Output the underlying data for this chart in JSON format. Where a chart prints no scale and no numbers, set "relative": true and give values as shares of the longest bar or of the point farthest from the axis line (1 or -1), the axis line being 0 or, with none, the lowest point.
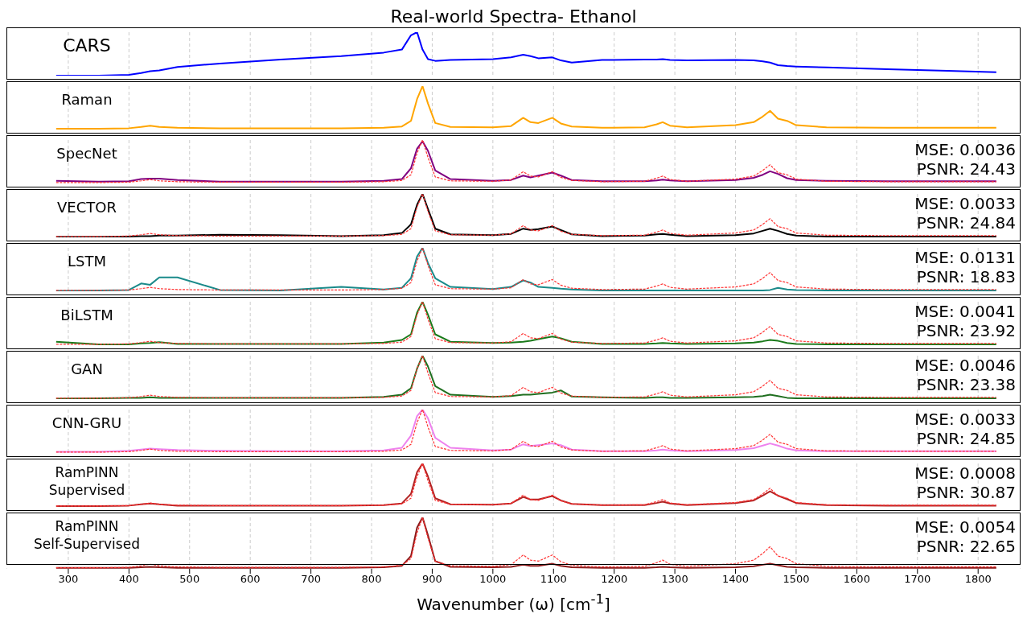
{
  "chart_data": [
    {
      "type": "line",
      "title": "Real-world Spectra- Ethanol",
      "relative": true,
      "xlim": [
        198,
        1870
      ],
      "xticks": [
        300,
        400,
        500,
        600,
        700,
        800,
        900,
        1000,
        1100,
        1200,
        1300,
        1400,
        1500,
        1600,
        1700,
        1800
      ],
      "grid": "x",
      "tick_labels": false,
      "marker": "none",
      "annotations": [
        "CARS"
      ],
      "x": [
        280,
        350,
        400,
        420,
        435,
        450,
        480,
        550,
        650,
        750,
        820,
        850,
        865,
        875,
        884,
        893,
        905,
        930,
        1000,
        1030,
        1050,
        1062,
        1075,
        1098,
        1112,
        1130,
        1180,
        1250,
        1270,
        1280,
        1292,
        1320,
        1400,
        1430,
        1445,
        1457,
        1470,
        1485,
        1500,
        1550,
        1650,
        1750,
        1830
      ],
      "series": [
        {
          "color": "#0000ff",
          "values": [
            0,
            0,
            0.02,
            0.06,
            0.1,
            0.12,
            0.2,
            0.28,
            0.37,
            0.45,
            0.53,
            0.6,
            0.93,
            1.0,
            0.6,
            0.38,
            0.34,
            0.36,
            0.38,
            0.42,
            0.48,
            0.45,
            0.4,
            0.42,
            0.35,
            0.3,
            0.36,
            0.37,
            0.37,
            0.38,
            0.36,
            0.35,
            0.36,
            0.35,
            0.33,
            0.3,
            0.24,
            0.22,
            0.21,
            0.19,
            0.15,
            0.11,
            0.08
          ]
        }
      ]
    },
    {
      "type": "line",
      "relative": true,
      "xlim": [
        198,
        1870
      ],
      "xticks": [
        300,
        400,
        500,
        600,
        700,
        800,
        900,
        1000,
        1100,
        1200,
        1300,
        1400,
        1500,
        1600,
        1700,
        1800
      ],
      "grid": "x",
      "tick_labels": false,
      "marker": "none",
      "annotations": [
        "Raman"
      ],
      "x": [
        280,
        350,
        400,
        420,
        435,
        450,
        480,
        550,
        650,
        750,
        820,
        850,
        865,
        875,
        884,
        893,
        905,
        930,
        1000,
        1030,
        1050,
        1062,
        1075,
        1098,
        1112,
        1130,
        1180,
        1250,
        1270,
        1280,
        1292,
        1320,
        1400,
        1430,
        1445,
        1457,
        1470,
        1485,
        1500,
        1550,
        1650,
        1750,
        1830
      ],
      "series": [
        {
          "color": "#ffa500",
          "values": [
            0.02,
            0.02,
            0.03,
            0.06,
            0.09,
            0.06,
            0.04,
            0.03,
            0.03,
            0.03,
            0.04,
            0.07,
            0.2,
            0.7,
            1.0,
            0.6,
            0.15,
            0.06,
            0.05,
            0.08,
            0.27,
            0.17,
            0.15,
            0.27,
            0.14,
            0.07,
            0.04,
            0.05,
            0.12,
            0.17,
            0.09,
            0.05,
            0.1,
            0.17,
            0.3,
            0.43,
            0.25,
            0.2,
            0.1,
            0.05,
            0.04,
            0.04,
            0.04
          ]
        }
      ]
    },
    {
      "type": "line",
      "relative": true,
      "xlim": [
        198,
        1870
      ],
      "xticks": [
        300,
        400,
        500,
        600,
        700,
        800,
        900,
        1000,
        1100,
        1200,
        1300,
        1400,
        1500,
        1600,
        1700,
        1800
      ],
      "grid": "x",
      "tick_labels": false,
      "marker": "none",
      "annotations": [
        "SpecNet",
        "MSE: 0.0036",
        "PSNR: 24.43"
      ],
      "x": [
        280,
        350,
        400,
        420,
        435,
        450,
        480,
        550,
        650,
        750,
        820,
        850,
        865,
        875,
        884,
        893,
        905,
        930,
        1000,
        1030,
        1050,
        1062,
        1075,
        1098,
        1112,
        1130,
        1180,
        1250,
        1270,
        1280,
        1292,
        1320,
        1400,
        1430,
        1445,
        1457,
        1470,
        1485,
        1500,
        1550,
        1650,
        1750,
        1830
      ],
      "series": [
        {
          "color": "#ff3333",
          "line_style": "dashed",
          "values": [
            0.02,
            0.02,
            0.03,
            0.06,
            0.09,
            0.06,
            0.04,
            0.03,
            0.03,
            0.03,
            0.04,
            0.07,
            0.2,
            0.7,
            1.0,
            0.6,
            0.15,
            0.06,
            0.05,
            0.08,
            0.27,
            0.17,
            0.15,
            0.27,
            0.14,
            0.07,
            0.04,
            0.05,
            0.12,
            0.17,
            0.09,
            0.05,
            0.1,
            0.17,
            0.3,
            0.43,
            0.25,
            0.2,
            0.1,
            0.05,
            0.04,
            0.04,
            0.04
          ]
        },
        {
          "color": "#800080",
          "values": [
            0.06,
            0.04,
            0.05,
            0.1,
            0.11,
            0.11,
            0.08,
            0.04,
            0.04,
            0.04,
            0.06,
            0.1,
            0.35,
            0.8,
            0.97,
            0.75,
            0.3,
            0.1,
            0.06,
            0.08,
            0.18,
            0.14,
            0.18,
            0.25,
            0.18,
            0.08,
            0.05,
            0.05,
            0.07,
            0.09,
            0.07,
            0.05,
            0.08,
            0.13,
            0.2,
            0.28,
            0.22,
            0.12,
            0.08,
            0.06,
            0.05,
            0.05,
            0.05
          ]
        }
      ]
    },
    {
      "type": "line",
      "relative": true,
      "xlim": [
        198,
        1870
      ],
      "xticks": [
        300,
        400,
        500,
        600,
        700,
        800,
        900,
        1000,
        1100,
        1200,
        1300,
        1400,
        1500,
        1600,
        1700,
        1800
      ],
      "grid": "x",
      "tick_labels": false,
      "marker": "none",
      "annotations": [
        "VECTOR",
        "MSE: 0.0033",
        "PSNR: 24.84"
      ],
      "x": [
        280,
        350,
        400,
        420,
        435,
        450,
        480,
        550,
        650,
        750,
        820,
        850,
        865,
        875,
        884,
        893,
        905,
        930,
        1000,
        1030,
        1050,
        1062,
        1075,
        1098,
        1112,
        1130,
        1180,
        1250,
        1270,
        1280,
        1292,
        1320,
        1400,
        1430,
        1445,
        1457,
        1470,
        1485,
        1500,
        1550,
        1650,
        1750,
        1830
      ],
      "series": [
        {
          "color": "#ff3333",
          "line_style": "dashed",
          "values": [
            0.02,
            0.02,
            0.03,
            0.06,
            0.09,
            0.06,
            0.04,
            0.03,
            0.03,
            0.03,
            0.04,
            0.07,
            0.2,
            0.7,
            1.0,
            0.6,
            0.15,
            0.06,
            0.05,
            0.08,
            0.27,
            0.17,
            0.15,
            0.27,
            0.14,
            0.07,
            0.04,
            0.05,
            0.12,
            0.17,
            0.09,
            0.05,
            0.1,
            0.17,
            0.3,
            0.43,
            0.25,
            0.2,
            0.1,
            0.05,
            0.04,
            0.04,
            0.04
          ]
        },
        {
          "color": "#000000",
          "values": [
            0.01,
            0.01,
            0.02,
            0.03,
            0.03,
            0.04,
            0.04,
            0.06,
            0.05,
            0.03,
            0.05,
            0.1,
            0.3,
            0.75,
            1.0,
            0.65,
            0.2,
            0.07,
            0.05,
            0.08,
            0.2,
            0.17,
            0.19,
            0.25,
            0.17,
            0.07,
            0.03,
            0.04,
            0.07,
            0.08,
            0.06,
            0.03,
            0.05,
            0.09,
            0.15,
            0.2,
            0.15,
            0.08,
            0.04,
            0.02,
            0.02,
            0.02,
            0.02
          ]
        }
      ]
    },
    {
      "type": "line",
      "relative": true,
      "xlim": [
        198,
        1870
      ],
      "xticks": [
        300,
        400,
        500,
        600,
        700,
        800,
        900,
        1000,
        1100,
        1200,
        1300,
        1400,
        1500,
        1600,
        1700,
        1800
      ],
      "grid": "x",
      "tick_labels": false,
      "marker": "none",
      "annotations": [
        "LSTM",
        "MSE: 0.0131",
        "PSNR: 18.83"
      ],
      "x": [
        280,
        350,
        400,
        420,
        435,
        450,
        480,
        550,
        650,
        750,
        820,
        850,
        865,
        875,
        884,
        893,
        905,
        930,
        1000,
        1030,
        1050,
        1062,
        1075,
        1098,
        1112,
        1130,
        1180,
        1250,
        1270,
        1280,
        1292,
        1320,
        1400,
        1430,
        1445,
        1457,
        1470,
        1485,
        1500,
        1550,
        1650,
        1750,
        1830
      ],
      "series": [
        {
          "color": "#ff3333",
          "line_style": "dashed",
          "values": [
            0.02,
            0.02,
            0.03,
            0.06,
            0.09,
            0.06,
            0.04,
            0.03,
            0.03,
            0.03,
            0.04,
            0.07,
            0.2,
            0.7,
            1.0,
            0.6,
            0.15,
            0.06,
            0.05,
            0.08,
            0.27,
            0.17,
            0.15,
            0.27,
            0.14,
            0.07,
            0.04,
            0.05,
            0.12,
            0.17,
            0.09,
            0.05,
            0.1,
            0.17,
            0.3,
            0.43,
            0.25,
            0.2,
            0.1,
            0.05,
            0.04,
            0.04,
            0.04
          ]
        },
        {
          "color": "#1a8a8a",
          "values": [
            0.01,
            0.02,
            0.03,
            0.18,
            0.15,
            0.32,
            0.32,
            0.03,
            0.02,
            0.1,
            0.04,
            0.08,
            0.3,
            0.8,
            1.0,
            0.65,
            0.3,
            0.1,
            0.05,
            0.1,
            0.25,
            0.2,
            0.1,
            0.08,
            0.06,
            0.04,
            0.02,
            0.02,
            0.02,
            0.02,
            0.02,
            0.02,
            0.02,
            0.02,
            0.02,
            0.03,
            0.08,
            0.04,
            0.03,
            0.02,
            0.02,
            0.02,
            0.02
          ]
        }
      ]
    },
    {
      "type": "line",
      "relative": true,
      "xlim": [
        198,
        1870
      ],
      "xticks": [
        300,
        400,
        500,
        600,
        700,
        800,
        900,
        1000,
        1100,
        1200,
        1300,
        1400,
        1500,
        1600,
        1700,
        1800
      ],
      "grid": "x",
      "tick_labels": false,
      "marker": "none",
      "annotations": [
        "BiLSTM",
        "MSE: 0.0041",
        "PSNR: 23.92"
      ],
      "x": [
        280,
        350,
        400,
        420,
        435,
        450,
        480,
        550,
        650,
        750,
        820,
        850,
        865,
        875,
        884,
        893,
        905,
        930,
        1000,
        1030,
        1050,
        1062,
        1075,
        1098,
        1112,
        1130,
        1180,
        1250,
        1270,
        1280,
        1292,
        1320,
        1400,
        1430,
        1445,
        1457,
        1470,
        1485,
        1500,
        1550,
        1650,
        1750,
        1830
      ],
      "series": [
        {
          "color": "#ff3333",
          "line_style": "dashed",
          "values": [
            0.02,
            0.02,
            0.03,
            0.06,
            0.09,
            0.06,
            0.04,
            0.03,
            0.03,
            0.03,
            0.04,
            0.07,
            0.2,
            0.7,
            1.0,
            0.6,
            0.15,
            0.06,
            0.05,
            0.08,
            0.27,
            0.17,
            0.15,
            0.27,
            0.14,
            0.07,
            0.04,
            0.05,
            0.12,
            0.17,
            0.09,
            0.05,
            0.1,
            0.17,
            0.3,
            0.43,
            0.25,
            0.2,
            0.1,
            0.05,
            0.04,
            0.04,
            0.04
          ]
        },
        {
          "color": "#1a7a1a",
          "values": [
            0.08,
            0.02,
            0.02,
            0.04,
            0.05,
            0.07,
            0.03,
            0.03,
            0.03,
            0.03,
            0.06,
            0.12,
            0.25,
            0.75,
            1.0,
            0.7,
            0.25,
            0.08,
            0.05,
            0.06,
            0.08,
            0.1,
            0.14,
            0.2,
            0.16,
            0.08,
            0.03,
            0.03,
            0.04,
            0.05,
            0.04,
            0.03,
            0.04,
            0.06,
            0.09,
            0.12,
            0.1,
            0.05,
            0.03,
            0.02,
            0.02,
            0.02,
            0.02
          ]
        }
      ]
    },
    {
      "type": "line",
      "relative": true,
      "xlim": [
        198,
        1870
      ],
      "xticks": [
        300,
        400,
        500,
        600,
        700,
        800,
        900,
        1000,
        1100,
        1200,
        1300,
        1400,
        1500,
        1600,
        1700,
        1800
      ],
      "grid": "x",
      "tick_labels": false,
      "marker": "none",
      "annotations": [
        "GAN",
        "MSE: 0.0046",
        "PSNR: 23.38"
      ],
      "x": [
        280,
        350,
        400,
        420,
        435,
        450,
        480,
        550,
        650,
        750,
        820,
        850,
        865,
        875,
        884,
        893,
        905,
        930,
        1000,
        1030,
        1050,
        1062,
        1075,
        1098,
        1112,
        1130,
        1180,
        1250,
        1270,
        1280,
        1292,
        1320,
        1400,
        1430,
        1445,
        1457,
        1470,
        1485,
        1500,
        1550,
        1650,
        1750,
        1830
      ],
      "series": [
        {
          "color": "#ff3333",
          "line_style": "dashed",
          "values": [
            0.02,
            0.02,
            0.03,
            0.06,
            0.09,
            0.06,
            0.04,
            0.03,
            0.03,
            0.03,
            0.04,
            0.07,
            0.2,
            0.7,
            1.0,
            0.6,
            0.15,
            0.06,
            0.05,
            0.08,
            0.27,
            0.17,
            0.15,
            0.27,
            0.14,
            0.07,
            0.04,
            0.05,
            0.12,
            0.17,
            0.09,
            0.05,
            0.1,
            0.17,
            0.3,
            0.43,
            0.25,
            0.2,
            0.1,
            0.05,
            0.04,
            0.04,
            0.04
          ]
        },
        {
          "color": "#1f6f1f",
          "values": [
            0.01,
            0.02,
            0.03,
            0.03,
            0.04,
            0.03,
            0.03,
            0.03,
            0.03,
            0.03,
            0.05,
            0.1,
            0.25,
            0.7,
            1.0,
            0.75,
            0.3,
            0.1,
            0.05,
            0.07,
            0.1,
            0.1,
            0.12,
            0.15,
            0.2,
            0.06,
            0.04,
            0.03,
            0.04,
            0.04,
            0.03,
            0.03,
            0.04,
            0.05,
            0.07,
            0.1,
            0.07,
            0.03,
            0.02,
            0.02,
            0.02,
            0.02,
            0.02
          ]
        }
      ]
    },
    {
      "type": "line",
      "relative": true,
      "xlim": [
        198,
        1870
      ],
      "xticks": [
        300,
        400,
        500,
        600,
        700,
        800,
        900,
        1000,
        1100,
        1200,
        1300,
        1400,
        1500,
        1600,
        1700,
        1800
      ],
      "grid": "x",
      "tick_labels": false,
      "marker": "none",
      "annotations": [
        "CNN-GRU",
        "MSE: 0.0033",
        "PSNR: 24.85"
      ],
      "x": [
        280,
        350,
        400,
        420,
        435,
        450,
        480,
        550,
        650,
        750,
        820,
        850,
        865,
        875,
        884,
        893,
        905,
        930,
        1000,
        1030,
        1050,
        1062,
        1075,
        1098,
        1112,
        1130,
        1180,
        1250,
        1270,
        1280,
        1292,
        1320,
        1400,
        1430,
        1445,
        1457,
        1470,
        1485,
        1500,
        1550,
        1650,
        1750,
        1830
      ],
      "series": [
        {
          "color": "#ff3333",
          "line_style": "dashed",
          "values": [
            0.02,
            0.02,
            0.03,
            0.06,
            0.09,
            0.06,
            0.04,
            0.03,
            0.03,
            0.03,
            0.04,
            0.07,
            0.2,
            0.7,
            1.0,
            0.6,
            0.15,
            0.06,
            0.05,
            0.08,
            0.27,
            0.17,
            0.15,
            0.27,
            0.14,
            0.07,
            0.04,
            0.05,
            0.12,
            0.17,
            0.09,
            0.05,
            0.1,
            0.17,
            0.3,
            0.43,
            0.25,
            0.2,
            0.1,
            0.05,
            0.04,
            0.04,
            0.04
          ]
        },
        {
          "color": "#ee82ee",
          "values": [
            0.03,
            0.03,
            0.05,
            0.08,
            0.1,
            0.09,
            0.07,
            0.05,
            0.04,
            0.04,
            0.06,
            0.12,
            0.4,
            0.85,
            1.0,
            0.8,
            0.35,
            0.12,
            0.06,
            0.08,
            0.2,
            0.16,
            0.18,
            0.22,
            0.18,
            0.08,
            0.04,
            0.04,
            0.06,
            0.08,
            0.06,
            0.04,
            0.07,
            0.11,
            0.17,
            0.22,
            0.17,
            0.1,
            0.06,
            0.04,
            0.04,
            0.04,
            0.04
          ]
        }
      ]
    },
    {
      "type": "line",
      "relative": true,
      "xlim": [
        198,
        1870
      ],
      "xticks": [
        300,
        400,
        500,
        600,
        700,
        800,
        900,
        1000,
        1100,
        1200,
        1300,
        1400,
        1500,
        1600,
        1700,
        1800
      ],
      "grid": "x",
      "tick_labels": false,
      "marker": "none",
      "annotations": [
        "RamPINN\nSupervised",
        "MSE: 0.0008",
        "PSNR: 30.87"
      ],
      "x": [
        280,
        350,
        400,
        420,
        435,
        450,
        480,
        550,
        650,
        750,
        820,
        850,
        865,
        875,
        884,
        893,
        905,
        930,
        1000,
        1030,
        1050,
        1062,
        1075,
        1098,
        1112,
        1130,
        1180,
        1250,
        1270,
        1280,
        1292,
        1320,
        1400,
        1430,
        1445,
        1457,
        1470,
        1485,
        1500,
        1550,
        1650,
        1750,
        1830
      ],
      "series": [
        {
          "color": "#ff3333",
          "line_style": "dashed",
          "values": [
            0.02,
            0.02,
            0.03,
            0.06,
            0.09,
            0.06,
            0.04,
            0.03,
            0.03,
            0.03,
            0.04,
            0.07,
            0.2,
            0.7,
            1.0,
            0.6,
            0.15,
            0.06,
            0.05,
            0.08,
            0.27,
            0.17,
            0.15,
            0.27,
            0.14,
            0.07,
            0.04,
            0.05,
            0.12,
            0.17,
            0.09,
            0.05,
            0.1,
            0.17,
            0.3,
            0.43,
            0.25,
            0.2,
            0.1,
            0.05,
            0.04,
            0.04,
            0.04
          ]
        },
        {
          "color": "#b22222",
          "values": [
            0.02,
            0.02,
            0.03,
            0.06,
            0.08,
            0.06,
            0.03,
            0.03,
            0.03,
            0.03,
            0.04,
            0.08,
            0.3,
            0.8,
            1.0,
            0.7,
            0.2,
            0.06,
            0.05,
            0.08,
            0.23,
            0.17,
            0.17,
            0.25,
            0.15,
            0.07,
            0.04,
            0.04,
            0.09,
            0.12,
            0.08,
            0.04,
            0.09,
            0.15,
            0.26,
            0.36,
            0.26,
            0.18,
            0.09,
            0.04,
            0.03,
            0.03,
            0.03
          ]
        }
      ]
    },
    {
      "type": "line",
      "relative": true,
      "xlim": [
        198,
        1870
      ],
      "xticks": [
        300,
        400,
        500,
        600,
        700,
        800,
        900,
        1000,
        1100,
        1200,
        1300,
        1400,
        1500,
        1600,
        1700,
        1800
      ],
      "grid": "x",
      "marker": "none",
      "xlabel": "Wavenumber (ω) [cm$^{-1}$]",
      "tick_labels": "x",
      "annotations": [
        "RamPINN\nSelf-Supervised",
        "MSE: 0.0054",
        "PSNR: 22.65"
      ],
      "x": [
        280,
        350,
        400,
        420,
        435,
        450,
        480,
        550,
        650,
        750,
        820,
        850,
        865,
        875,
        884,
        893,
        905,
        930,
        1000,
        1030,
        1050,
        1062,
        1075,
        1098,
        1112,
        1130,
        1180,
        1250,
        1270,
        1280,
        1292,
        1320,
        1400,
        1430,
        1445,
        1457,
        1470,
        1485,
        1500,
        1550,
        1650,
        1750,
        1830
      ],
      "series": [
        {
          "color": "#ff3333",
          "line_style": "dashed",
          "values": [
            0.02,
            0.02,
            0.03,
            0.06,
            0.09,
            0.06,
            0.04,
            0.03,
            0.03,
            0.03,
            0.04,
            0.07,
            0.2,
            0.7,
            1.0,
            0.6,
            0.15,
            0.06,
            0.05,
            0.08,
            0.27,
            0.17,
            0.15,
            0.27,
            0.14,
            0.07,
            0.04,
            0.05,
            0.12,
            0.17,
            0.09,
            0.05,
            0.1,
            0.17,
            0.3,
            0.43,
            0.25,
            0.2,
            0.1,
            0.05,
            0.04,
            0.04,
            0.04
          ]
        },
        {
          "color": "#8b1a1a",
          "values": [
            0.02,
            0.02,
            0.02,
            0.03,
            0.04,
            0.03,
            0.02,
            0.02,
            0.02,
            0.02,
            0.03,
            0.06,
            0.25,
            0.8,
            1.0,
            0.65,
            0.15,
            0.04,
            0.03,
            0.04,
            0.08,
            0.06,
            0.06,
            0.1,
            0.06,
            0.03,
            0.02,
            0.02,
            0.03,
            0.04,
            0.03,
            0.02,
            0.03,
            0.05,
            0.08,
            0.1,
            0.07,
            0.04,
            0.03,
            0.02,
            0.02,
            0.02,
            0.02
          ]
        }
      ]
    }
  ]
}
